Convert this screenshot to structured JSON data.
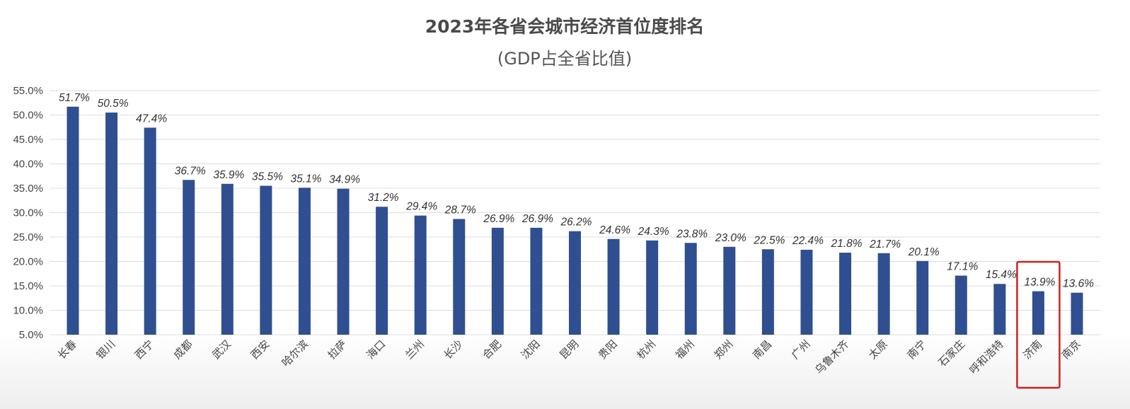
{
  "chart_data": {
    "type": "bar",
    "title": "2023年各省会城市经济首位度排名",
    "subtitle": "(GDP占全省比值)",
    "xlabel": "",
    "ylabel": "",
    "ylim": [
      5.0,
      55.0
    ],
    "ytick_step": 5.0,
    "ytick_labels": [
      "5.0%",
      "10.0%",
      "15.0%",
      "20.0%",
      "25.0%",
      "30.0%",
      "35.0%",
      "40.0%",
      "45.0%",
      "50.0%",
      "55.0%"
    ],
    "grid": true,
    "legend": "none",
    "bar_color": "#2f4f91",
    "highlight_color": "#cc2222",
    "highlighted_category": "济南",
    "categories": [
      "长春",
      "银川",
      "西宁",
      "成都",
      "武汉",
      "西安",
      "哈尔滨",
      "拉萨",
      "海口",
      "兰州",
      "长沙",
      "合肥",
      "沈阳",
      "昆明",
      "贵阳",
      "杭州",
      "福州",
      "郑州",
      "南昌",
      "广州",
      "乌鲁木齐",
      "太原",
      "南宁",
      "石家庄",
      "呼和浩特",
      "济南",
      "南京"
    ],
    "values": [
      51.7,
      50.5,
      47.4,
      36.7,
      35.9,
      35.5,
      35.1,
      34.9,
      31.2,
      29.4,
      28.7,
      26.9,
      26.9,
      26.2,
      24.6,
      24.3,
      23.8,
      23.0,
      22.5,
      22.4,
      21.8,
      21.7,
      20.1,
      17.1,
      15.4,
      13.9,
      13.6
    ],
    "value_labels": [
      "51.7%",
      "50.5%",
      "47.4%",
      "36.7%",
      "35.9%",
      "35.5%",
      "35.1%",
      "34.9%",
      "31.2%",
      "29.4%",
      "28.7%",
      "26.9%",
      "26.9%",
      "26.2%",
      "24.6%",
      "24.3%",
      "23.8%",
      "23.0%",
      "22.5%",
      "22.4%",
      "21.8%",
      "21.7%",
      "20.1%",
      "17.1%",
      "15.4%",
      "13.9%",
      "13.6%"
    ]
  }
}
